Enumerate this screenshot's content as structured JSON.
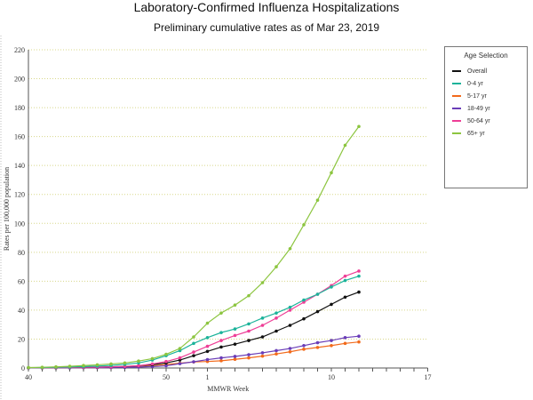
{
  "title": "Laboratory-Confirmed Influenza Hospitalizations",
  "subtitle": "Preliminary cumulative rates as of Mar 23, 2019",
  "chart_data": {
    "type": "line",
    "title": "Laboratory-Confirmed Influenza Hospitalizations",
    "xlabel": "MMWR Week",
    "ylabel": "Rates per 100,000 population",
    "ylim": [
      0,
      220
    ],
    "yticks": [
      0,
      20,
      40,
      60,
      80,
      100,
      120,
      140,
      160,
      180,
      200,
      220
    ],
    "x": [
      40,
      41,
      42,
      43,
      44,
      45,
      46,
      47,
      48,
      49,
      50,
      51,
      52,
      1,
      2,
      3,
      4,
      5,
      6,
      7,
      8,
      9,
      10,
      11,
      12
    ],
    "xticks": [
      "40",
      "50",
      "1",
      "10",
      "17"
    ],
    "legend_title": "Age Selection",
    "legend_position": "right",
    "series": [
      {
        "name": "Overall",
        "color": "#111111",
        "values": [
          0.1,
          0.2,
          0.3,
          0.4,
          0.5,
          0.6,
          0.8,
          1.0,
          1.5,
          2.3,
          3.5,
          5.5,
          8.5,
          11.5,
          14.5,
          16.5,
          19,
          21.5,
          25.5,
          29.5,
          34,
          39,
          44,
          49,
          52.5
        ]
      },
      {
        "name": "0-4 yr",
        "color": "#1bb39a",
        "values": [
          0.2,
          0.3,
          0.5,
          0.7,
          1.0,
          1.3,
          1.8,
          2.5,
          3.5,
          5.5,
          8.5,
          12,
          17,
          21,
          24.5,
          27,
          30.5,
          34.5,
          38,
          42,
          47,
          51,
          56,
          60.5,
          63.5
        ]
      },
      {
        "name": "5-17 yr",
        "color": "#f26a1b",
        "values": [
          0.05,
          0.1,
          0.1,
          0.2,
          0.2,
          0.3,
          0.4,
          0.5,
          0.8,
          1.5,
          2.5,
          3.3,
          4.2,
          4.5,
          5,
          6,
          7,
          8.2,
          9.7,
          11.2,
          13,
          14.2,
          15.5,
          17,
          18
        ]
      },
      {
        "name": "18-49 yr",
        "color": "#6a3db8",
        "values": [
          0.05,
          0.1,
          0.1,
          0.1,
          0.2,
          0.2,
          0.3,
          0.4,
          0.6,
          1.0,
          1.5,
          3,
          4.3,
          5.8,
          7,
          8,
          9.2,
          10.5,
          12,
          13.5,
          15.5,
          17.5,
          19,
          21,
          22
        ]
      },
      {
        "name": "50-64 yr",
        "color": "#ee3d96",
        "values": [
          0.1,
          0.2,
          0.3,
          0.4,
          0.5,
          0.6,
          0.8,
          1.1,
          1.6,
          2.8,
          4.5,
          7,
          11,
          15,
          19,
          22.5,
          25.5,
          29.5,
          34.5,
          40,
          45.5,
          51,
          57,
          63.5,
          67
        ]
      },
      {
        "name": "65+ yr",
        "color": "#8cc53f",
        "values": [
          0.3,
          0.5,
          0.8,
          1.2,
          1.7,
          2.2,
          2.8,
          3.5,
          4.8,
          6.5,
          9.5,
          13.5,
          21.5,
          31,
          38,
          43.5,
          50,
          59,
          70,
          82.5,
          99,
          116,
          135,
          154,
          167
        ]
      }
    ]
  }
}
